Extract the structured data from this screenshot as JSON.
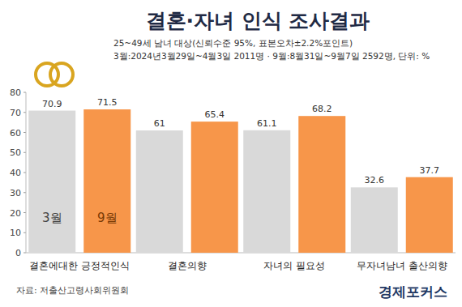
{
  "chart_data": {
    "type": "bar",
    "title": "결혼·자녀 인식 조사결과",
    "subtitle": [
      "25~49세 남녀 대상(신뢰수준 95%, 표본오차±2.2%포인트)",
      "3월:2024년3월29일~4월3일 2011명 · 9월:8월31일~9월7일 2592명, 단위: %"
    ],
    "source": "자료: 저출산고령사회위원회",
    "annotations": [
      "경제포커스"
    ],
    "categories": [
      "결혼에대한 긍정적인식",
      "결혼의향",
      "자녀의 필요성",
      "무자녀남녀 출산의향"
    ],
    "series": [
      {
        "name": "3월",
        "color": "#d9d9d9",
        "values": [
          70.9,
          61,
          61.1,
          32.6
        ]
      },
      {
        "name": "9월",
        "color": "#f7964a",
        "values": [
          71.5,
          65.4,
          68.2,
          37.7
        ]
      }
    ],
    "ylim": [
      0,
      80
    ],
    "yticks": [
      0,
      10,
      20,
      30,
      40,
      50,
      60,
      70,
      80
    ],
    "grid": false,
    "data_labels": true,
    "legend": "bottom-left"
  }
}
